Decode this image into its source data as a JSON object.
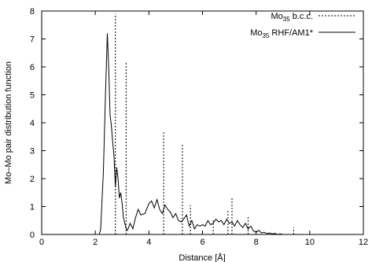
{
  "chart_data": {
    "type": "line",
    "xlabel": "Distance [Å]",
    "ylabel": "Mo–Mo pair distribution function",
    "xlim": [
      0,
      12
    ],
    "ylim": [
      0,
      8
    ],
    "xticks": [
      "0",
      "2",
      "4",
      "6",
      "8",
      "10",
      "12"
    ],
    "yticks": [
      "0",
      "1",
      "2",
      "3",
      "4",
      "5",
      "6",
      "7",
      "8"
    ],
    "legend_placement": "top-right",
    "grid": false,
    "series": [
      {
        "name_main": "Mo",
        "name_sub": "35",
        "name_rest": " b.c.c.",
        "style": "dotted-sticks",
        "color": "#000000",
        "x": [
          2.75,
          3.15,
          4.55,
          5.25,
          5.55,
          6.4,
          6.95,
          7.1,
          7.7,
          9.4
        ],
        "y": [
          7.9,
          6.2,
          3.7,
          3.25,
          1.05,
          0.55,
          0.9,
          1.35,
          0.65,
          0.25
        ]
      },
      {
        "name_main": "Mo",
        "name_sub": "35",
        "name_rest": " RHF/AM1*",
        "style": "solid-line",
        "color": "#000000",
        "x": [
          0,
          2.15,
          2.2,
          2.3,
          2.38,
          2.45,
          2.5,
          2.55,
          2.6,
          2.65,
          2.7,
          2.75,
          2.8,
          2.85,
          2.9,
          2.95,
          3.0,
          3.05,
          3.1,
          3.15,
          3.2,
          3.3,
          3.4,
          3.5,
          3.6,
          3.7,
          3.85,
          4.0,
          4.1,
          4.2,
          4.3,
          4.4,
          4.5,
          4.6,
          4.7,
          4.8,
          4.9,
          5.0,
          5.1,
          5.2,
          5.3,
          5.4,
          5.5,
          5.6,
          5.7,
          5.8,
          5.9,
          6.0,
          6.1,
          6.2,
          6.3,
          6.4,
          6.5,
          6.6,
          6.7,
          6.8,
          6.9,
          7.0,
          7.1,
          7.2,
          7.3,
          7.4,
          7.5,
          7.6,
          7.7,
          7.8,
          7.9,
          8.0,
          8.1,
          8.2,
          8.3,
          8.4,
          8.5,
          8.6,
          8.7,
          8.8,
          8.9,
          9.0,
          9.2,
          9.4,
          9.6,
          10.0
        ],
        "y": [
          0,
          0,
          0.2,
          2.2,
          5.0,
          7.2,
          6.0,
          4.3,
          3.9,
          3.3,
          2.8,
          1.7,
          2.4,
          2.0,
          1.3,
          1.5,
          1.1,
          0.6,
          0.4,
          0.2,
          0.15,
          0.4,
          0.2,
          0.6,
          0.9,
          0.7,
          0.75,
          1.1,
          1.2,
          0.95,
          1.25,
          0.9,
          0.75,
          1.05,
          0.9,
          0.8,
          0.6,
          0.75,
          0.5,
          0.45,
          0.55,
          0.7,
          0.3,
          0.5,
          0.2,
          0.35,
          0.3,
          0.35,
          0.3,
          0.5,
          0.35,
          0.4,
          0.55,
          0.45,
          0.5,
          0.35,
          0.55,
          0.4,
          0.45,
          0.3,
          0.5,
          0.35,
          0.25,
          0.4,
          0.2,
          0.3,
          0.12,
          0.08,
          0.15,
          0.05,
          0.08,
          0.03,
          0.05,
          0.02,
          0.04,
          0.0,
          0.02,
          0.0,
          0.0,
          0.0,
          0.0,
          0.0
        ]
      }
    ]
  }
}
